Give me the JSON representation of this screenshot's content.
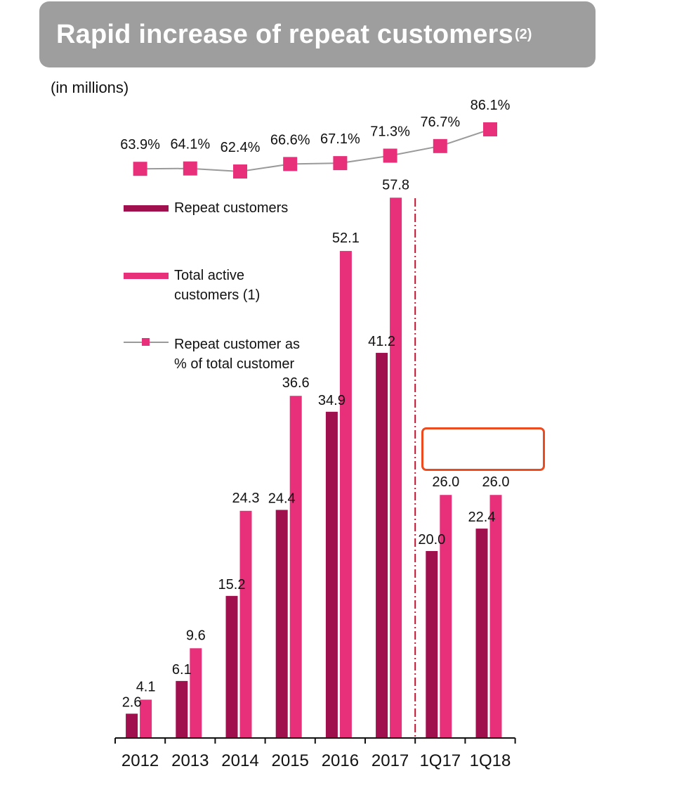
{
  "title": {
    "text": "Rapid increase of repeat customers",
    "superscript": "(2)"
  },
  "unit_label": "(in millions)",
  "legend": {
    "repeat": "Repeat customers",
    "total": "Total active customers (1)",
    "ratio": "Repeat customer as % of total customer"
  },
  "colors": {
    "repeat": "#a0104e",
    "total": "#e8307a",
    "ratio_line": "#9a9a9a",
    "divider": "#c8102e",
    "highlight": "#ec4a1f",
    "banner": "#9e9e9e"
  },
  "chart_data": {
    "type": "bar",
    "categories": [
      "2012",
      "2013",
      "2014",
      "2015",
      "2016",
      "2017",
      "1Q17",
      "1Q18"
    ],
    "series": [
      {
        "name": "Repeat customers",
        "values": [
          2.6,
          6.1,
          15.2,
          24.4,
          34.9,
          41.2,
          20.0,
          22.4
        ],
        "labels": [
          "2.6",
          "6.1",
          "15.2",
          "24.4",
          "34.9",
          "41.2",
          "20.0",
          "22.4"
        ]
      },
      {
        "name": "Total active customers (1)",
        "values": [
          4.1,
          9.6,
          24.3,
          36.6,
          52.1,
          57.8,
          26.0,
          26.0
        ],
        "labels": [
          "4.1",
          "9.6",
          "24.3",
          "36.6",
          "52.1",
          "57.8",
          "26.0",
          "26.0"
        ]
      }
    ],
    "line_series": {
      "name": "Repeat customer as % of total customer",
      "values": [
        63.9,
        64.1,
        62.4,
        66.6,
        67.1,
        71.3,
        76.7,
        86.1
      ],
      "labels": [
        "63.9%",
        "64.1%",
        "62.4%",
        "66.6%",
        "67.1%",
        "71.3%",
        "76.7%",
        "86.1%"
      ]
    },
    "divider_after": "2017",
    "highlighted": [
      "1Q17 total active customers",
      "1Q18 total active customers"
    ],
    "title": "Rapid increase of repeat customers",
    "ylabel": "(in millions)",
    "xlabel": "",
    "grid": false,
    "legend_position": "left"
  }
}
